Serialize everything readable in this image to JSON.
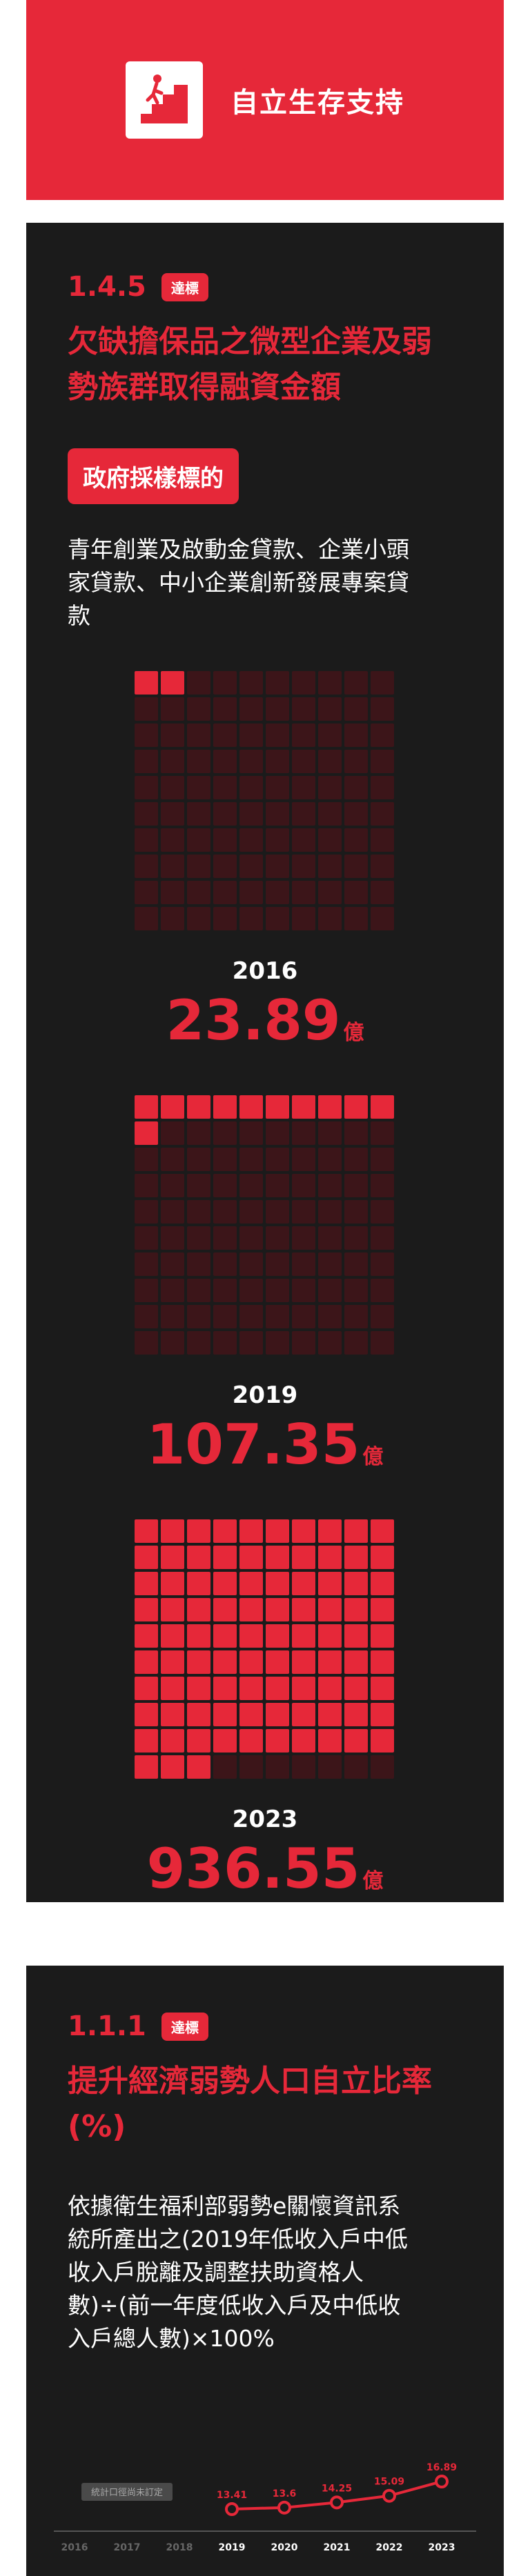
{
  "header": {
    "title": "自立生存支持",
    "icon": "stairs-climbing-person-icon"
  },
  "section1": {
    "code": "1.4.5",
    "badge": "達標",
    "title_line1": "欠缺擔保品之微型企業及弱",
    "title_line2": "勢族群取得融資金額",
    "label": "政府採樣標的",
    "desc_line1": "青年創業及啟動金貸款、企業小頭",
    "desc_line2": "家貸款、中小企業創新發展專案貸",
    "desc_line3": "款",
    "blocks": [
      {
        "year": "2016",
        "amount": "23.89",
        "unit": "億",
        "filled_cells": 2
      },
      {
        "year": "2019",
        "amount": "107.35",
        "unit": "億",
        "filled_cells": 11
      },
      {
        "year": "2023",
        "amount": "936.55",
        "unit": "億",
        "filled_cells": 93
      }
    ],
    "colors": {
      "filled": "#e62839",
      "empty": "#3c1519"
    }
  },
  "section2": {
    "code": "1.1.1",
    "badge": "達標",
    "title_line1": "提升經濟弱勢人口自立比率",
    "title_line2": "(%)",
    "desc_line1": "依據衛生福利部弱勢e關懷資訊系",
    "desc_line2": "統所產出之(2019年低收入戶中低",
    "desc_line3": "收入戶脫離及調整扶助資格人",
    "desc_line4": "數)÷(前一年度低收入戶及中低收",
    "desc_line5": "入戶總人數)×100%"
  },
  "chart_data": {
    "type": "line",
    "x": [
      "2016",
      "2017",
      "2018",
      "2019",
      "2020",
      "2021",
      "2022",
      "2023"
    ],
    "series": [
      {
        "values": [
          null,
          null,
          null,
          13.41,
          13.6,
          14.25,
          15.09,
          16.89
        ]
      }
    ],
    "annotations": [
      {
        "text": "統計口徑尚未訂定",
        "x": "2017"
      }
    ],
    "title": "",
    "xlabel": "",
    "ylabel": "",
    "colors": {
      "line": "#e62839",
      "tick_active": "#ffffff",
      "tick_inactive": "#666666"
    }
  }
}
